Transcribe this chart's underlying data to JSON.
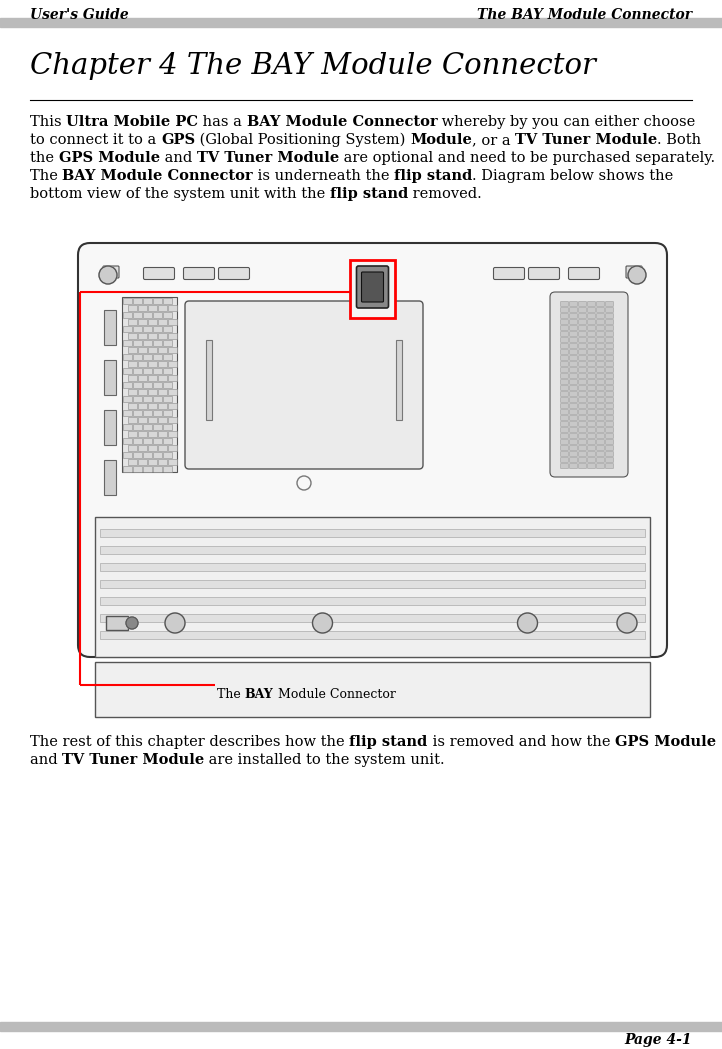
{
  "header_left": "User's Guide",
  "header_right": "The BAY Module Connector",
  "footer_right": "Page 4-1",
  "chapter_title": "Chapter 4 The BAY Module Connector",
  "bg_color": "#ffffff",
  "header_bar_color": "#bbbbbb",
  "text_color": "#000000",
  "fig_width": 7.22,
  "fig_height": 10.49,
  "dpi": 100,
  "body_lines": [
    [
      [
        "This ",
        false
      ],
      [
        "Ultra Mobile PC",
        true
      ],
      [
        " has a ",
        false
      ],
      [
        "BAY Module Connector",
        true
      ],
      [
        " whereby by you can either choose",
        false
      ]
    ],
    [
      [
        "to connect it to a ",
        false
      ],
      [
        "GPS",
        true
      ],
      [
        " (Global Positioning System) ",
        false
      ],
      [
        "Module",
        true
      ],
      [
        ", or a ",
        false
      ],
      [
        "TV Tuner Module",
        true
      ],
      [
        ". Both",
        false
      ]
    ],
    [
      [
        "the ",
        false
      ],
      [
        "GPS Module",
        true
      ],
      [
        " and ",
        false
      ],
      [
        "TV Tuner Module",
        true
      ],
      [
        " are optional and need to be purchased separately.",
        false
      ]
    ],
    [
      [
        "The ",
        false
      ],
      [
        "BAY Module Connector",
        true
      ],
      [
        " is underneath the ",
        false
      ],
      [
        "flip stand",
        true
      ],
      [
        ". Diagram below shows the",
        false
      ]
    ],
    [
      [
        "bottom view of the system unit with the ",
        false
      ],
      [
        "flip stand",
        true
      ],
      [
        " removed.",
        false
      ]
    ]
  ],
  "bottom_lines": [
    [
      [
        "The rest of this chapter describes how the ",
        false
      ],
      [
        "flip stand",
        true
      ],
      [
        " is removed and how the ",
        false
      ],
      [
        "GPS Module",
        true
      ]
    ],
    [
      [
        "and ",
        false
      ],
      [
        "TV Tuner Module",
        true
      ],
      [
        " are installed to the system unit.",
        false
      ]
    ]
  ],
  "callout_text": [
    [
      "The ",
      false
    ],
    [
      "BAY",
      true
    ],
    [
      " Module Connector",
      false
    ]
  ]
}
